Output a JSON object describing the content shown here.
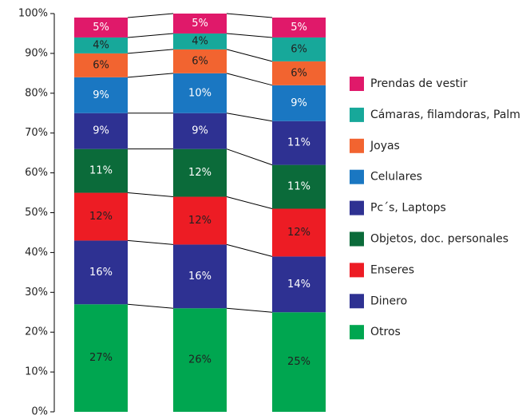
{
  "chart_data": {
    "type": "stacked_bar_100",
    "categories": [
      null,
      null,
      null
    ],
    "ylim": [
      0,
      100
    ],
    "yticks": [
      {
        "value": 0,
        "label": "0%"
      },
      {
        "value": 10,
        "label": "10%"
      },
      {
        "value": 20,
        "label": "20%"
      },
      {
        "value": 30,
        "label": "30%"
      },
      {
        "value": 40,
        "label": "40%"
      },
      {
        "value": 50,
        "label": "50%"
      },
      {
        "value": 60,
        "label": "60%"
      },
      {
        "value": 70,
        "label": "70%"
      },
      {
        "value": 80,
        "label": "80%"
      },
      {
        "value": 90,
        "label": "90%"
      },
      {
        "value": 100,
        "label": "100%"
      }
    ],
    "series": [
      {
        "name": "Otros",
        "color": "#00a650",
        "label_color": "#222222",
        "values": [
          27,
          26,
          25
        ],
        "value_labels": [
          "27%",
          "26%",
          "25%"
        ]
      },
      {
        "name": "Dinero",
        "color": "#2e3192",
        "label_color": "#ffffff",
        "values": [
          16,
          16,
          14
        ],
        "value_labels": [
          "16%",
          "16%",
          "14%"
        ]
      },
      {
        "name": "Enseres",
        "color": "#ed1c24",
        "label_color": "#222222",
        "values": [
          12,
          12,
          12
        ],
        "value_labels": [
          "12%",
          "12%",
          "12%"
        ]
      },
      {
        "name": "Objetos, doc. personales",
        "color": "#0b6b3a",
        "label_color": "#ffffff",
        "values": [
          11,
          12,
          11
        ],
        "value_labels": [
          "11%",
          "12%",
          "11%"
        ]
      },
      {
        "name": "Pc´s, Laptops",
        "color": "#2e3192",
        "label_color": "#ffffff",
        "values": [
          9,
          9,
          11
        ],
        "value_labels": [
          "9%",
          "9%",
          "11%"
        ]
      },
      {
        "name": "Celulares",
        "color": "#1a77c2",
        "label_color": "#ffffff",
        "values": [
          9,
          10,
          9
        ],
        "value_labels": [
          "9%",
          "10%",
          "9%"
        ]
      },
      {
        "name": "Joyas",
        "color": "#f26430",
        "label_color": "#222222",
        "values": [
          6,
          6,
          6
        ],
        "value_labels": [
          "6%",
          "6%",
          "6%"
        ]
      },
      {
        "name": "Cámaras, filamdoras, Palm",
        "color": "#17a89a",
        "label_color": "#222222",
        "values": [
          4,
          4,
          6
        ],
        "value_labels": [
          "4%",
          "4%",
          "6%"
        ]
      },
      {
        "name": "Prendas de vestir",
        "color": "#e0196a",
        "label_color": "#ffffff",
        "values": [
          5,
          5,
          5
        ],
        "value_labels": [
          "5%",
          "5%",
          "5%"
        ]
      }
    ]
  }
}
